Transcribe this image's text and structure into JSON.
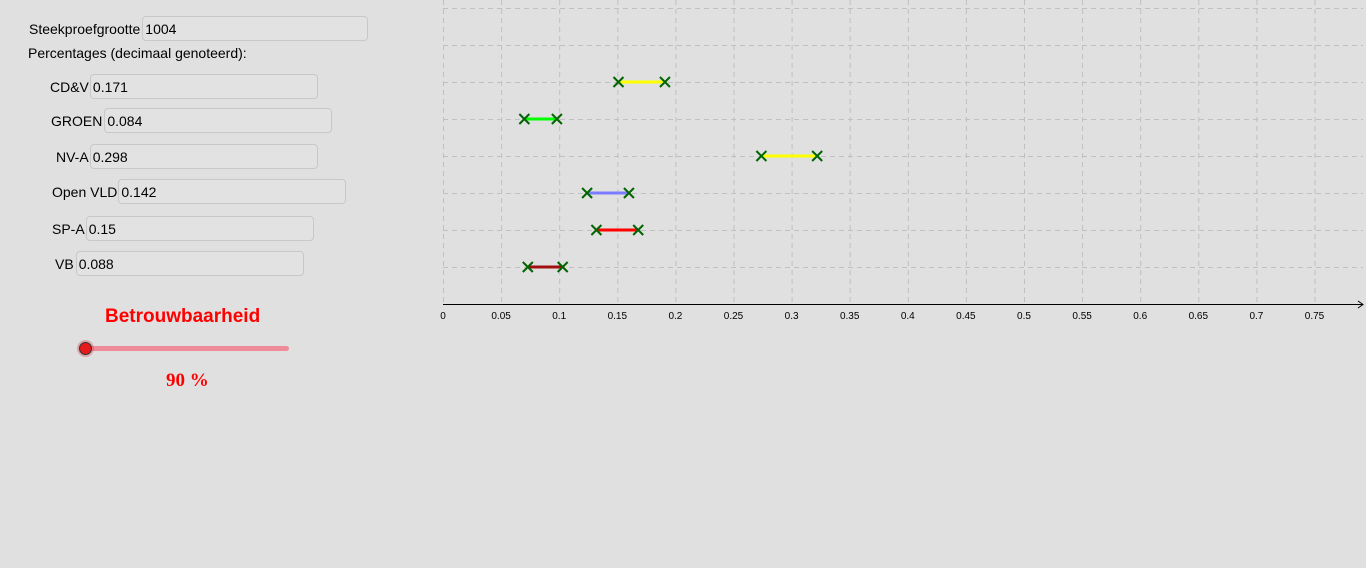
{
  "inputs": {
    "sample_size_label": "Steekproefgrootte",
    "sample_size_value": "1004",
    "percentages_heading": "Percentages (decimaal genoteerd):",
    "parties": [
      {
        "label": "CD&V",
        "value": "0.171"
      },
      {
        "label": "GROEN",
        "value": "0.084"
      },
      {
        "label": "NV-A",
        "value": "0.298"
      },
      {
        "label": "Open VLD",
        "value": "0.142"
      },
      {
        "label": "SP-A",
        "value": "0.15"
      },
      {
        "label": "VB",
        "value": "0.088"
      }
    ]
  },
  "slider": {
    "title": "Betrouwbaarheid",
    "value_text": "90 %",
    "color": "#ff0000",
    "track_color": "#ef8a98",
    "position_fraction": 0.0
  },
  "chart_data": {
    "type": "interval",
    "x_ticks": [
      "0",
      "0.05",
      "0.1",
      "0.15",
      "0.2",
      "0.25",
      "0.3",
      "0.35",
      "0.4",
      "0.45",
      "0.5",
      "0.55",
      "0.6",
      "0.65",
      "0.7",
      "0.75"
    ],
    "xlim": [
      0,
      0.79
    ],
    "grid": true,
    "marker_color": "#006400",
    "intervals": [
      {
        "lower": 0.151,
        "upper": 0.191,
        "color": "#ffff00"
      },
      {
        "lower": 0.07,
        "upper": 0.098,
        "color": "#00ff00"
      },
      {
        "lower": 0.274,
        "upper": 0.322,
        "color": "#ffff00"
      },
      {
        "lower": 0.124,
        "upper": 0.16,
        "color": "#7b7bff"
      },
      {
        "lower": 0.132,
        "upper": 0.168,
        "color": "#ff0000"
      },
      {
        "lower": 0.073,
        "upper": 0.103,
        "color": "#a01010"
      }
    ]
  }
}
